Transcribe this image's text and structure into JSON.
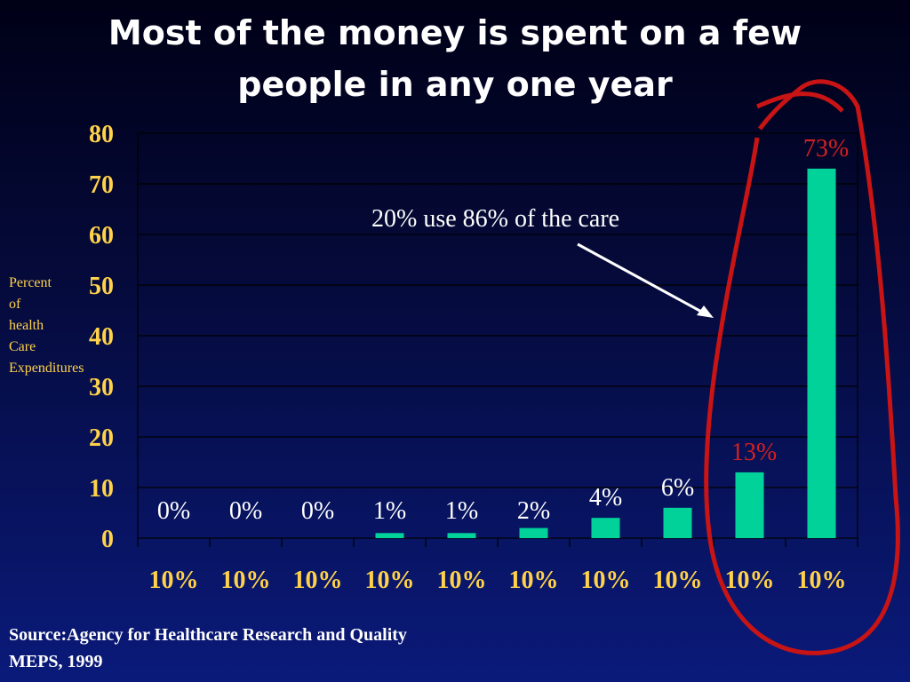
{
  "title_lines": [
    "Most of the money is spent on a few",
    "people in any one year"
  ],
  "ylabel_lines": [
    "Percent",
    "of",
    "health",
    "Care",
    "Expenditures"
  ],
  "source_lines": [
    "Source:Agency for Healthcare Research and Quality",
    "MEPS, 1999"
  ],
  "annotation": "20% use 86% of the care",
  "colors": {
    "bar": "#00d29a",
    "tick_label": "#ffd24a",
    "highlight_label": "#d42020",
    "ellipse": "#c81414",
    "data_label": "#ffffff",
    "grid": "#000000"
  },
  "chart_data": {
    "type": "bar",
    "categories": [
      "10%",
      "10%",
      "10%",
      "10%",
      "10%",
      "10%",
      "10%",
      "10%",
      "10%",
      "10%"
    ],
    "values": [
      0,
      0,
      0,
      1,
      1,
      2,
      4,
      6,
      13,
      73
    ],
    "data_labels": [
      "0%",
      "0%",
      "0%",
      "1%",
      "1%",
      "2%",
      "4%",
      "6%",
      "13%",
      "73%"
    ],
    "highlighted": [
      false,
      false,
      false,
      false,
      false,
      false,
      false,
      false,
      true,
      true
    ],
    "yticks": [
      "0",
      "10",
      "20",
      "30",
      "40",
      "50",
      "60",
      "70",
      "80"
    ],
    "ylim": [
      0,
      80
    ],
    "grid": true
  }
}
